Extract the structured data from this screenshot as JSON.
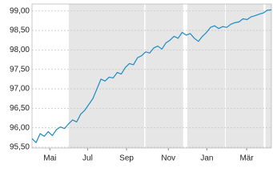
{
  "chart_data": {
    "type": "line",
    "values": [
      95.72,
      95.62,
      95.85,
      95.78,
      95.9,
      95.8,
      95.95,
      96.02,
      95.98,
      96.1,
      96.2,
      96.15,
      96.35,
      96.45,
      96.6,
      96.75,
      97.0,
      97.25,
      97.2,
      97.3,
      97.28,
      97.42,
      97.38,
      97.55,
      97.65,
      97.62,
      97.8,
      97.85,
      97.95,
      97.92,
      98.05,
      98.1,
      98.02,
      98.18,
      98.25,
      98.35,
      98.3,
      98.45,
      98.38,
      98.42,
      98.3,
      98.22,
      98.35,
      98.45,
      98.58,
      98.62,
      98.55,
      98.6,
      98.58,
      98.66,
      98.7,
      98.72,
      98.8,
      98.78,
      98.85,
      98.88,
      98.92,
      98.95,
      99.02,
      99.03
    ],
    "color": "#1a8cc4",
    "xlim": [
      0,
      59
    ],
    "xticks": [
      {
        "value": 4.4,
        "label": "Mai"
      },
      {
        "value": 13.7,
        "label": "Jul"
      },
      {
        "value": 23.3,
        "label": "Sep"
      },
      {
        "value": 33.6,
        "label": "Nov"
      },
      {
        "value": 43.1,
        "label": "Jan"
      },
      {
        "value": 52.9,
        "label": "Mär"
      }
    ],
    "ylim": [
      95.48,
      99.18
    ],
    "yticks": [
      {
        "value": 95.5,
        "label": "95,50"
      },
      {
        "value": 96,
        "label": "96,00"
      },
      {
        "value": 96.5,
        "label": "96,50"
      },
      {
        "value": 97,
        "label": "97,00"
      },
      {
        "value": 97.5,
        "label": "97,50"
      },
      {
        "value": 98,
        "label": "98,00"
      },
      {
        "value": 98.5,
        "label": "98,50"
      },
      {
        "value": 99,
        "label": "99,00"
      }
    ],
    "grid": true
  }
}
